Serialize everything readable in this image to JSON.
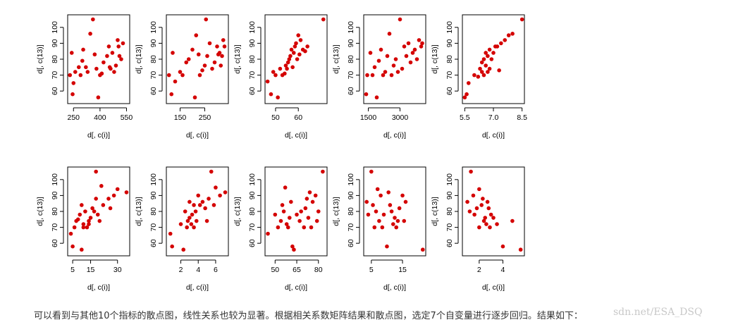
{
  "caption": "可以看到与其他10个指标的散点图，线性关系也较为显著。根据相关系数矩阵结果和散点图，选定7个自变量进行逐步回归。结果如下：",
  "watermark": "sdn.net/ESA_DSQ",
  "colors": {
    "point": "#d40000",
    "frame": "#000000"
  },
  "chart_data": [
    {
      "type": "scatter",
      "xlabel": "d[, c(i)]",
      "ylabel": "d[, c(13)]",
      "xlim": [
        225,
        560
      ],
      "ylim": [
        53,
        107
      ],
      "xticks": [
        250,
        400,
        550
      ],
      "xticklabels": [
        "250",
        "400",
        "550"
      ],
      "yticks": [
        60,
        70,
        80,
        90,
        100
      ],
      "yticklabels": [
        "60",
        "70",
        "80",
        "90",
        "100"
      ],
      "x": [
        230,
        240,
        245,
        250,
        260,
        280,
        290,
        300,
        305,
        320,
        330,
        345,
        360,
        370,
        380,
        390,
        400,
        410,
        420,
        440,
        450,
        455,
        460,
        470,
        480,
        490,
        500,
        505,
        510,
        520,
        530
      ],
      "y": [
        70,
        84,
        58,
        65,
        72,
        75,
        70,
        79,
        86,
        75,
        72,
        96,
        105,
        83,
        74,
        56,
        70,
        71,
        78,
        82,
        88,
        75,
        74,
        84,
        72,
        76,
        92,
        88,
        82,
        80,
        90
      ]
    },
    {
      "type": "scatter",
      "xlabel": "d[, c(i)]",
      "ylabel": "d[, c(13)]",
      "xlim": [
        100,
        340
      ],
      "ylim": [
        53,
        107
      ],
      "xticks": [
        150,
        250
      ],
      "xticklabels": [
        "150",
        "250"
      ],
      "yticks": [
        60,
        70,
        80,
        90,
        100
      ],
      "yticklabels": [
        "60",
        "70",
        "80",
        "90",
        "100"
      ],
      "x": [
        105,
        115,
        120,
        130,
        150,
        160,
        175,
        185,
        200,
        210,
        215,
        225,
        230,
        240,
        250,
        255,
        260,
        270,
        280,
        290,
        300,
        305,
        310,
        315,
        320,
        325,
        330
      ],
      "y": [
        70,
        58,
        84,
        66,
        72,
        70,
        78,
        80,
        86,
        56,
        95,
        83,
        70,
        73,
        76,
        105,
        82,
        90,
        74,
        78,
        88,
        83,
        84,
        76,
        82,
        92,
        88
      ]
    },
    {
      "type": "scatter",
      "xlabel": "d[, c(i)]",
      "ylabel": "d[, c(13)]",
      "xlim": [
        46,
        72
      ],
      "ylim": [
        53,
        107
      ],
      "xticks": [
        50,
        60
      ],
      "xticklabels": [
        "50",
        "60"
      ],
      "yticks": [
        60,
        70,
        80,
        90,
        100
      ],
      "yticklabels": [
        "60",
        "70",
        "80",
        "90",
        "100"
      ],
      "x": [
        46.5,
        48,
        49,
        50,
        51,
        52,
        53,
        54,
        54.5,
        55,
        55.5,
        56,
        56.5,
        57,
        57.5,
        58,
        58.5,
        59,
        59.5,
        60,
        60.5,
        61,
        62,
        63,
        64,
        71
      ],
      "y": [
        66,
        58,
        72,
        70,
        56,
        74,
        70,
        71,
        76,
        74,
        78,
        80,
        82,
        86,
        75,
        84,
        88,
        90,
        80,
        95,
        83,
        92,
        86,
        85,
        88,
        105
      ]
    },
    {
      "type": "scatter",
      "xlabel": "d[, c(i)]",
      "ylabel": "d[, c(13)]",
      "xlim": [
        1350,
        4150
      ],
      "ylim": [
        53,
        107
      ],
      "xticks": [
        1500,
        3000
      ],
      "xticklabels": [
        "1500",
        "3000"
      ],
      "yticks": [
        60,
        70,
        80,
        90,
        100
      ],
      "yticklabels": [
        "60",
        "70",
        "80",
        "90",
        "100"
      ],
      "x": [
        1400,
        1450,
        1600,
        1700,
        1800,
        1900,
        2000,
        2100,
        2200,
        2300,
        2400,
        2500,
        2600,
        2700,
        2800,
        2900,
        3000,
        3100,
        3200,
        3300,
        3400,
        3500,
        3600,
        3700,
        3800,
        3900,
        4000,
        4050
      ],
      "y": [
        58,
        70,
        84,
        70,
        75,
        56,
        79,
        86,
        70,
        72,
        82,
        96,
        70,
        76,
        80,
        72,
        105,
        74,
        88,
        82,
        90,
        78,
        84,
        86,
        80,
        92,
        88,
        90
      ]
    },
    {
      "type": "scatter",
      "xlabel": "d[, c(i)]",
      "ylabel": "d[, c(13)]",
      "xlim": [
        5.45,
        8.55
      ],
      "ylim": [
        53,
        107
      ],
      "xticks": [
        5.5,
        7.0,
        8.5
      ],
      "xticklabels": [
        "5.5",
        "7.0",
        "8.5"
      ],
      "yticks": [
        60,
        70,
        80,
        90,
        100
      ],
      "yticklabels": [
        "60",
        "70",
        "80",
        "90",
        "100"
      ],
      "x": [
        5.5,
        5.6,
        5.7,
        6.0,
        6.2,
        6.3,
        6.4,
        6.4,
        6.5,
        6.5,
        6.6,
        6.6,
        6.7,
        6.7,
        6.8,
        6.8,
        6.9,
        7.0,
        7.1,
        7.2,
        7.3,
        7.4,
        7.6,
        7.8,
        8.0,
        8.5
      ],
      "y": [
        56,
        58,
        65,
        70,
        69,
        74,
        72,
        78,
        70,
        80,
        76,
        84,
        72,
        82,
        86,
        74,
        80,
        84,
        88,
        88,
        73,
        90,
        92,
        95,
        96,
        105
      ]
    },
    {
      "type": "scatter",
      "xlabel": "d[, c(i)]",
      "ylabel": "d[, c(13)]",
      "xlim": [
        3,
        36
      ],
      "ylim": [
        53,
        107
      ],
      "xticks": [
        5,
        15,
        30
      ],
      "xticklabels": [
        "5",
        "15",
        "30"
      ],
      "yticks": [
        60,
        70,
        80,
        90,
        100
      ],
      "yticklabels": [
        "60",
        "70",
        "80",
        "90",
        "100"
      ],
      "x": [
        4,
        5,
        6,
        7,
        8,
        9,
        10,
        10,
        11,
        11,
        12,
        13,
        14,
        14,
        15,
        16,
        17,
        18,
        18,
        19,
        20,
        21,
        22,
        25,
        26,
        28,
        30,
        35
      ],
      "y": [
        66,
        58,
        70,
        74,
        75,
        78,
        84,
        56,
        72,
        70,
        80,
        70,
        72,
        74,
        76,
        82,
        80,
        88,
        105,
        78,
        74,
        96,
        84,
        88,
        82,
        90,
        94,
        92
      ]
    },
    {
      "type": "scatter",
      "xlabel": "d[, c(i)]",
      "ylabel": "d[, c(13)]",
      "xlim": [
        0.5,
        7.3
      ],
      "ylim": [
        53,
        107
      ],
      "xticks": [
        2,
        4,
        6
      ],
      "xticklabels": [
        "2",
        "4",
        "6"
      ],
      "yticks": [
        60,
        70,
        80,
        90,
        100
      ],
      "yticklabels": [
        "60",
        "70",
        "80",
        "90",
        "100"
      ],
      "x": [
        0.8,
        1.0,
        2.0,
        2.3,
        2.5,
        2.7,
        2.8,
        3.0,
        3.0,
        3.2,
        3.3,
        3.5,
        3.5,
        3.7,
        3.8,
        4.0,
        4.2,
        4.5,
        4.8,
        5.0,
        5.2,
        5.5,
        5.8,
        6.0,
        6.5,
        7.1
      ],
      "y": [
        66,
        58,
        72,
        56,
        80,
        70,
        74,
        76,
        86,
        72,
        78,
        70,
        84,
        80,
        74,
        90,
        84,
        86,
        82,
        74,
        88,
        105,
        84,
        95,
        90,
        92
      ]
    },
    {
      "type": "scatter",
      "xlabel": "d[, c(i)]",
      "ylabel": "d[, c(13)]",
      "xlim": [
        44,
        85
      ],
      "ylim": [
        53,
        107
      ],
      "xticks": [
        50,
        65,
        80
      ],
      "xticklabels": [
        "50",
        "65",
        "80"
      ],
      "yticks": [
        60,
        70,
        80,
        90,
        100
      ],
      "yticklabels": [
        "60",
        "70",
        "80",
        "90",
        "100"
      ],
      "x": [
        45,
        50,
        52,
        54,
        55,
        56,
        57,
        58,
        59,
        60,
        61,
        62,
        63,
        65,
        67,
        68,
        70,
        71,
        72,
        73,
        74,
        75,
        76,
        78,
        79,
        80,
        83
      ],
      "y": [
        66,
        78,
        70,
        74,
        84,
        80,
        95,
        72,
        70,
        76,
        86,
        58,
        56,
        78,
        74,
        80,
        70,
        82,
        88,
        76,
        92,
        70,
        86,
        90,
        74,
        80,
        105
      ]
    },
    {
      "type": "scatter",
      "xlabel": "d[, c(i)]",
      "ylabel": "d[, c(13)]",
      "xlim": [
        3,
        22
      ],
      "ylim": [
        53,
        107
      ],
      "xticks": [
        5,
        15
      ],
      "xticklabels": [
        "5",
        "15"
      ],
      "yticks": [
        60,
        70,
        80,
        90,
        100
      ],
      "yticklabels": [
        "60",
        "70",
        "80",
        "90",
        "100"
      ],
      "x": [
        3.5,
        4,
        5,
        5.5,
        6,
        6.5,
        7,
        7.5,
        8,
        8.5,
        9,
        10,
        10.5,
        11,
        11.5,
        12,
        12.5,
        13,
        13.5,
        14,
        15,
        15.5,
        16,
        21.5
      ],
      "y": [
        86,
        78,
        105,
        84,
        70,
        80,
        94,
        74,
        90,
        70,
        78,
        58,
        92,
        84,
        80,
        72,
        76,
        70,
        74,
        82,
        90,
        74,
        86,
        56
      ]
    },
    {
      "type": "scatter",
      "xlabel": "d[, c(i)]",
      "ylabel": "d[, c(13)]",
      "xlim": [
        0.7,
        5.7
      ],
      "ylim": [
        53,
        107
      ],
      "xticks": [
        2,
        4
      ],
      "xticklabels": [
        "2",
        "4"
      ],
      "yticks": [
        60,
        70,
        80,
        90,
        100
      ],
      "yticklabels": [
        "60",
        "70",
        "80",
        "90",
        "100"
      ],
      "x": [
        1.0,
        1.2,
        1.3,
        1.5,
        1.6,
        1.8,
        2.0,
        2.0,
        2.2,
        2.3,
        2.4,
        2.5,
        2.6,
        2.7,
        2.8,
        2.9,
        3.0,
        3.2,
        3.5,
        4.0,
        4.8,
        5.5
      ],
      "y": [
        86,
        80,
        105,
        90,
        78,
        82,
        94,
        70,
        84,
        88,
        74,
        76,
        72,
        86,
        82,
        70,
        78,
        76,
        72,
        58,
        74,
        56
      ]
    }
  ]
}
